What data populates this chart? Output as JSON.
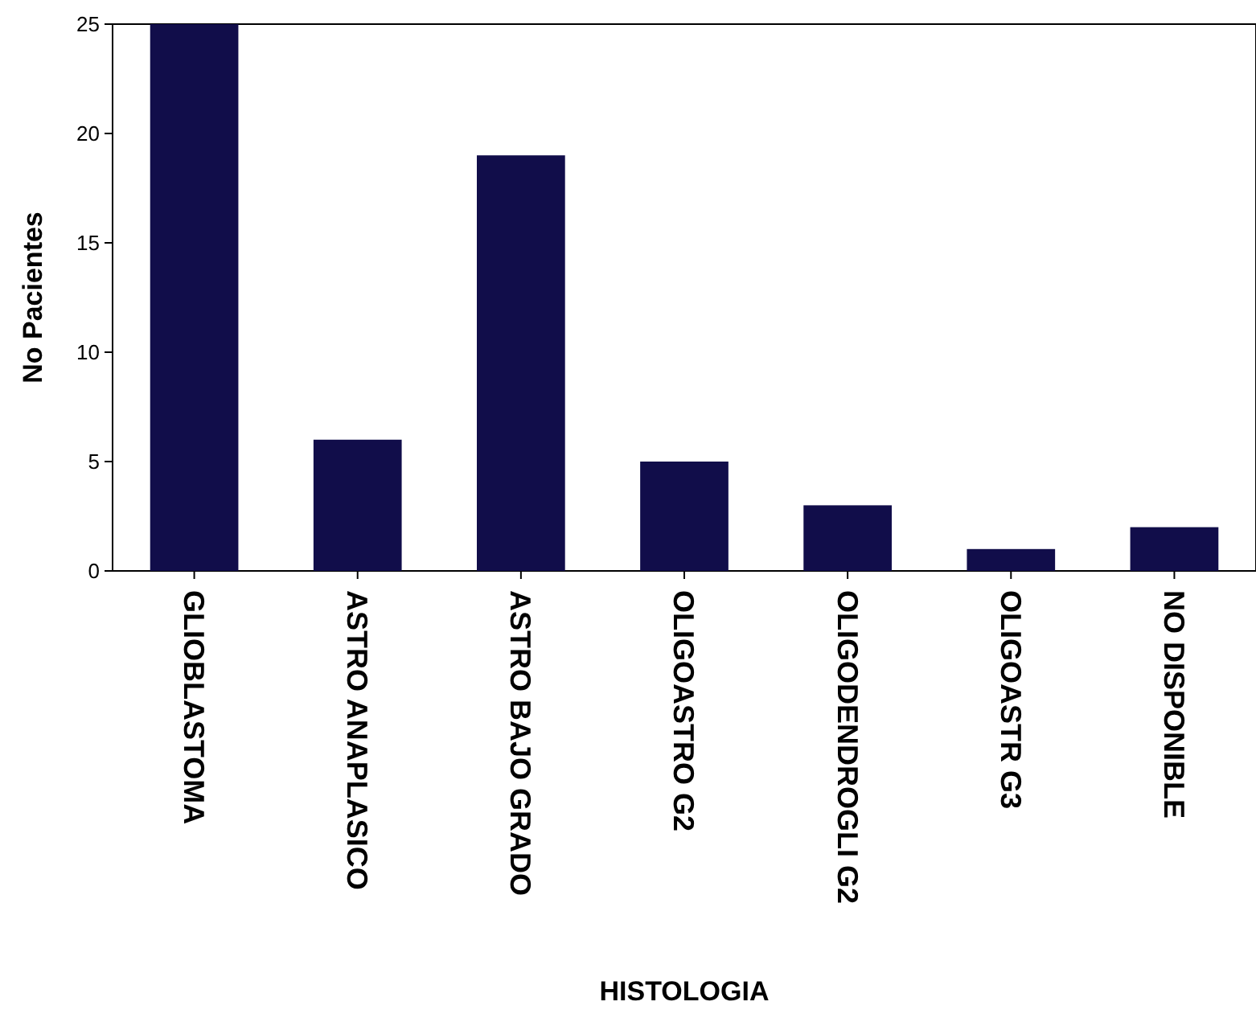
{
  "chart_data": {
    "type": "bar",
    "xlabel": "HISTOLOGIA",
    "ylabel": "No Pacientes",
    "categories": [
      "GLIOBLASTOMA",
      "ASTRO ANAPLASICO",
      "ASTRO BAJO GRADO",
      "OLIGOASTRO G2",
      "OLIGODENDROGLI G2",
      "OLIGOASTR G3",
      "NO DISPONIBLE"
    ],
    "values": [
      25,
      6,
      19,
      5,
      3,
      1,
      2
    ],
    "color": "#110d4a",
    "ylim": [
      0,
      25
    ],
    "yticks": [
      0,
      5,
      10,
      15,
      20,
      25
    ],
    "grid": false
  }
}
